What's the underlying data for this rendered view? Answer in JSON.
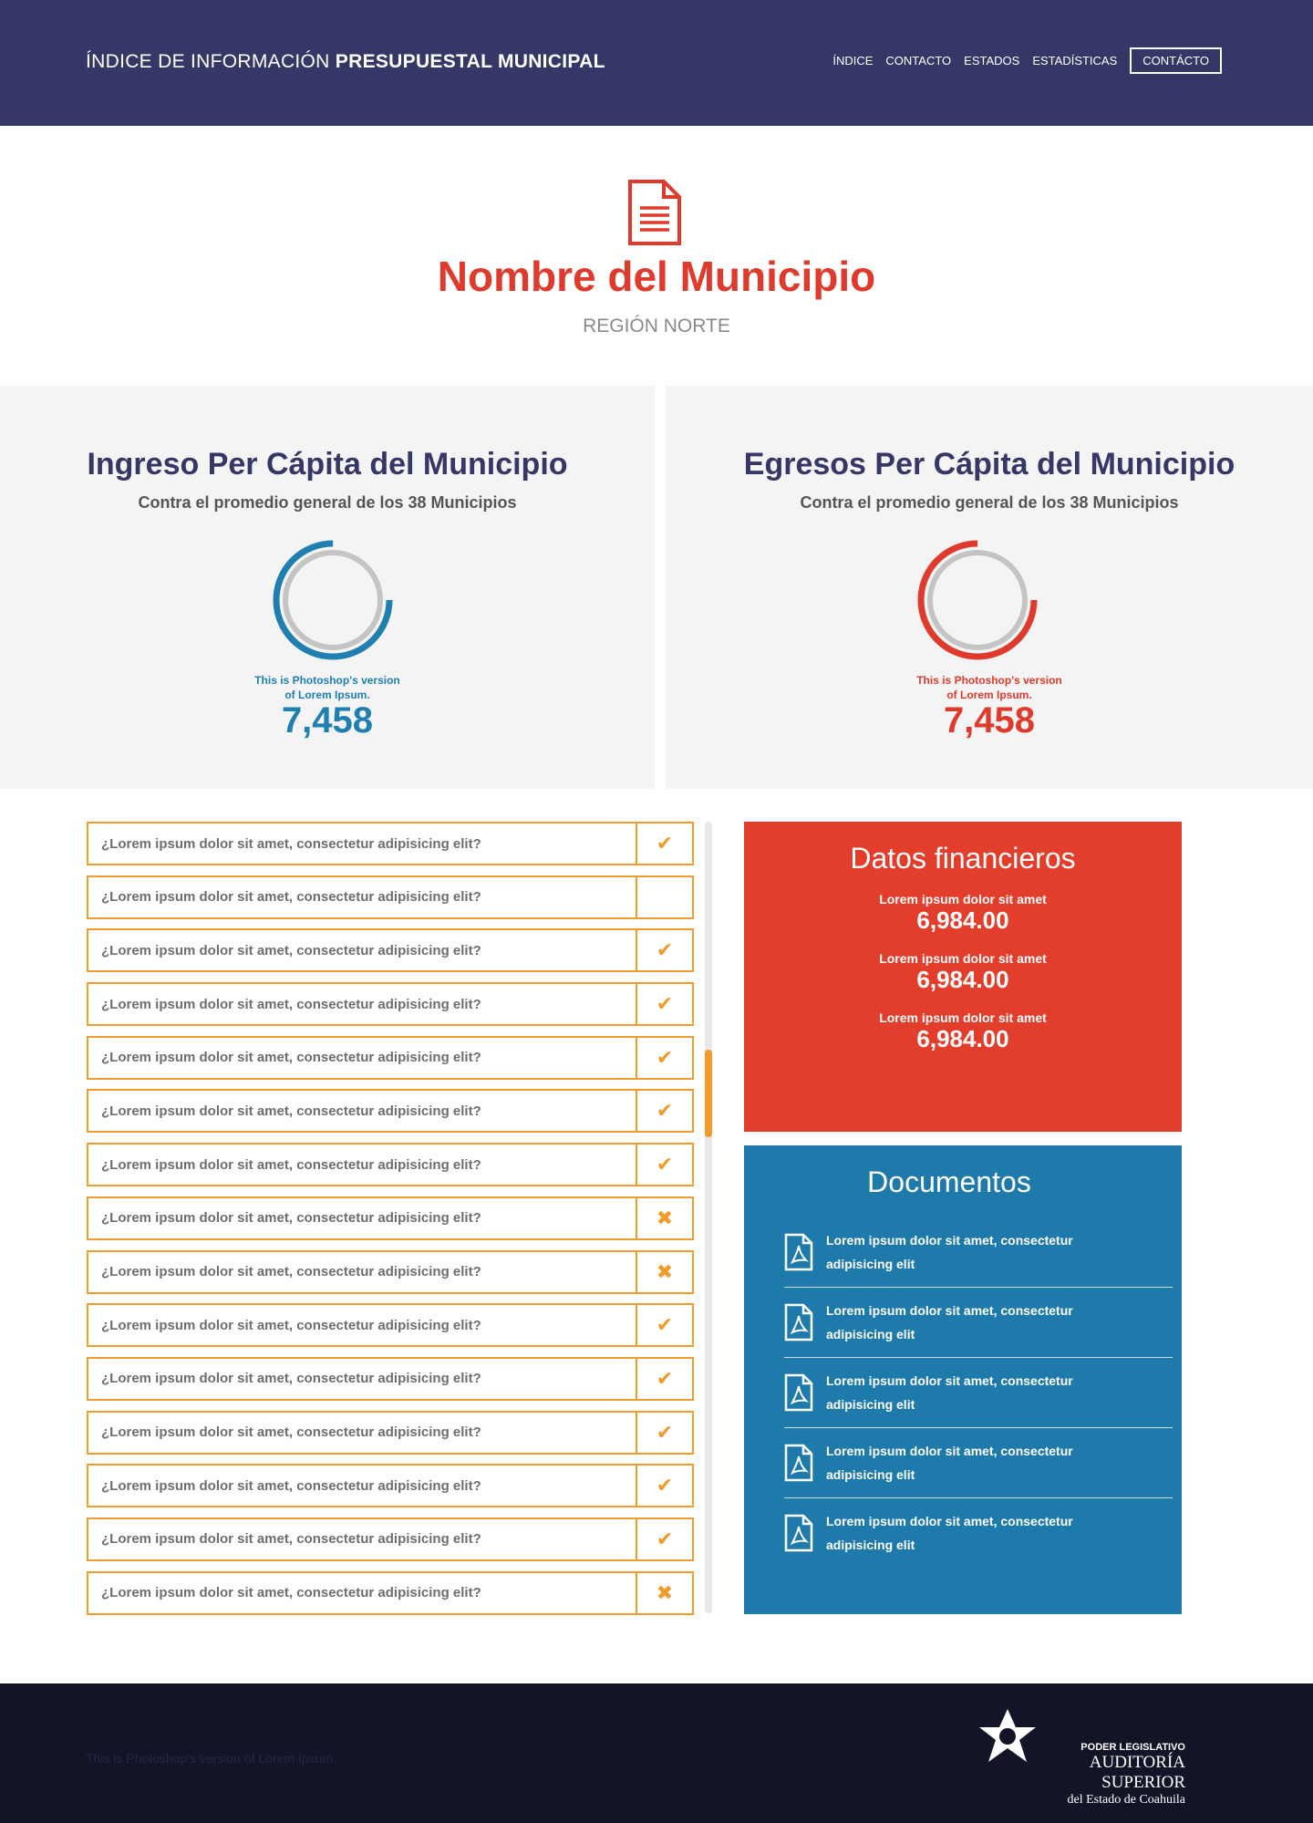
{
  "header": {
    "brand_light": "ÍNDICE DE INFORMACIÓN",
    "brand_bold": "PRESUPUESTAL MUNICIPAL",
    "nav": [
      "ÍNDICE",
      "CONTACTO",
      "ESTADOS",
      "ESTADÍSTICAS"
    ],
    "nav_button": "CONTÁCTO"
  },
  "hero": {
    "icon": "document-icon",
    "title": "Nombre del Municipio",
    "subtitle": "REGIÓN NORTE"
  },
  "panels": {
    "income": {
      "title": "Ingreso Per Cápita del Municipio",
      "subtitle": "Contra el promedio general de los 38 Municipios",
      "caption_line1": "This is Photoshop's version",
      "caption_line2": "of Lorem Ipsum.",
      "value": "7,458",
      "color": "#1f7fb1",
      "ring_fraction": 0.75
    },
    "expense": {
      "title": "Egresos Per Cápita del Municipio",
      "subtitle": "Contra el promedio general de los 38 Municipios",
      "caption_line1": "This is Photoshop's version",
      "caption_line2": "of Lorem Ipsum.",
      "value": "7,458",
      "color": "#e03a2c",
      "ring_fraction": 0.75
    }
  },
  "checklist": [
    {
      "question": "¿Lorem ipsum dolor sit amet, consectetur adipisicing elit?",
      "status": "check"
    },
    {
      "question": "¿Lorem ipsum dolor sit amet, consectetur adipisicing elit?",
      "status": "none"
    },
    {
      "question": "¿Lorem ipsum dolor sit amet, consectetur adipisicing elit?",
      "status": "check"
    },
    {
      "question": "¿Lorem ipsum dolor sit amet, consectetur adipisicing elit?",
      "status": "check"
    },
    {
      "question": "¿Lorem ipsum dolor sit amet, consectetur adipisicing elit?",
      "status": "check"
    },
    {
      "question": "¿Lorem ipsum dolor sit amet, consectetur adipisicing elit?",
      "status": "check"
    },
    {
      "question": "¿Lorem ipsum dolor sit amet, consectetur adipisicing elit?",
      "status": "check"
    },
    {
      "question": "¿Lorem ipsum dolor sit amet, consectetur adipisicing elit?",
      "status": "cross"
    },
    {
      "question": "¿Lorem ipsum dolor sit amet, consectetur adipisicing elit?",
      "status": "cross"
    },
    {
      "question": "¿Lorem ipsum dolor sit amet, consectetur adipisicing elit?",
      "status": "check"
    },
    {
      "question": "¿Lorem ipsum dolor sit amet, consectetur adipisicing elit?",
      "status": "check"
    },
    {
      "question": "¿Lorem ipsum dolor sit amet, consectetur adipisicing elit?",
      "status": "check"
    },
    {
      "question": "¿Lorem ipsum dolor sit amet, consectetur adipisicing elit?",
      "status": "check"
    },
    {
      "question": "¿Lorem ipsum dolor sit amet, consectetur adipisicing elit?",
      "status": "check"
    },
    {
      "question": "¿Lorem ipsum dolor sit amet, consectetur adipisicing elit?",
      "status": "cross"
    }
  ],
  "financial": {
    "title": "Datos financieros",
    "items": [
      {
        "label": "Lorem ipsum dolor sit amet",
        "value": "6,984.00"
      },
      {
        "label": "Lorem ipsum dolor sit amet",
        "value": "6,984.00"
      },
      {
        "label": "Lorem ipsum dolor sit amet",
        "value": "6,984.00"
      }
    ],
    "color": "#e33e2b"
  },
  "documents": {
    "title": "Documentos",
    "icon": "pdf-file-icon",
    "items": [
      {
        "line1": "Lorem ipsum dolor sit amet, consectetur",
        "line2": "adipisicing elit"
      },
      {
        "line1": "Lorem ipsum dolor sit amet, consectetur",
        "line2": "adipisicing elit"
      },
      {
        "line1": "Lorem ipsum dolor sit amet, consectetur",
        "line2": "adipisicing elit"
      },
      {
        "line1": "Lorem ipsum dolor sit amet, consectetur",
        "line2": "adipisicing elit"
      },
      {
        "line1": "Lorem ipsum dolor sit amet, consectetur",
        "line2": "adipisicing elit"
      }
    ],
    "color": "#1f7aac"
  },
  "footer": {
    "text": "This is Photoshop's version of Lorem Ipsum.",
    "logo_line1": "PODER LEGISLATIVO",
    "logo_line2": "AUDITORÍA SUPERIOR",
    "logo_line3": "del Estado de Coahuila"
  },
  "colors": {
    "header_bg": "#353766",
    "accent_orange": "#f19b2c",
    "footer_bg": "#131427"
  }
}
